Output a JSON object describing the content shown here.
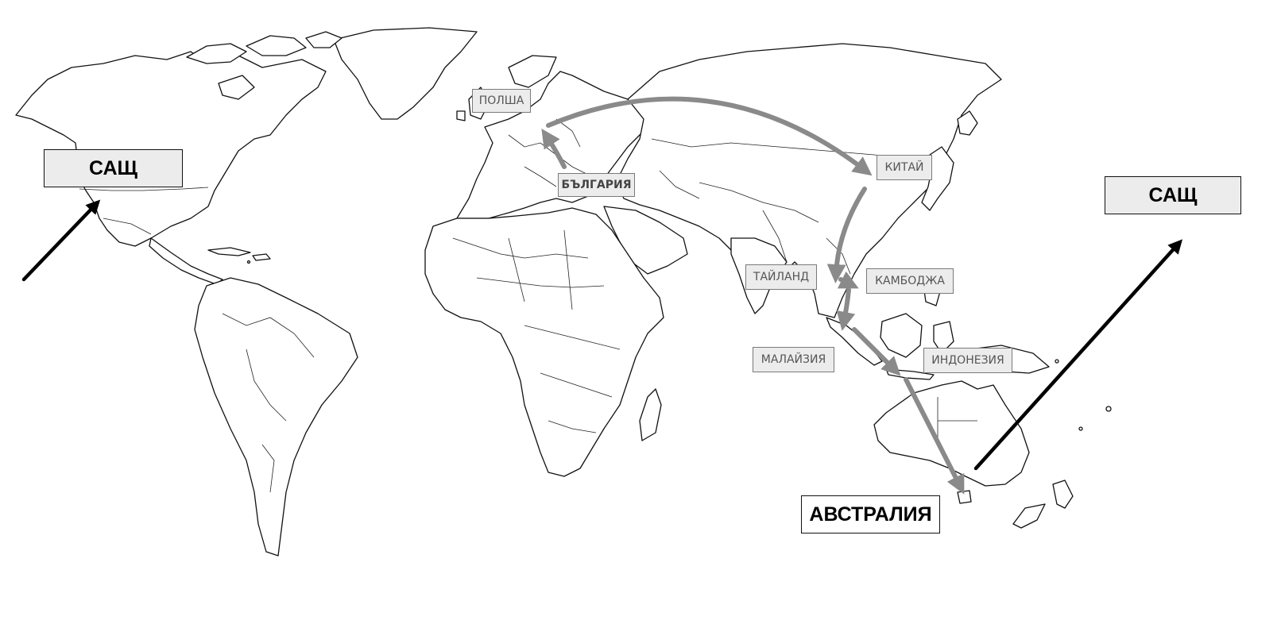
{
  "labels": {
    "usa_left": "САЩ",
    "usa_right": "САЩ",
    "poland": "ПОЛША",
    "bulgaria": "БЪЛГАРИЯ",
    "china": "КИТАЙ",
    "thailand": "ТАЙЛАНД",
    "cambodia": "КАМБОДЖА",
    "malaysia": "МАЛАЙЗИЯ",
    "indonesia": "ИНДОНЕЗИЯ",
    "australia": "АВСТРАЛИЯ"
  },
  "route": [
    "САЩ",
    "БЪЛГАРИЯ",
    "ПОЛША",
    "КИТАЙ",
    "ТАЙЛАНД",
    "КАМБОДЖА",
    "МАЛАЙЗИЯ",
    "ИНДОНЕЗИЯ",
    "АВСТРАЛИЯ",
    "САЩ"
  ],
  "colors": {
    "route_arrow": "#8a8a8a",
    "endpoint_arrow": "#000000",
    "label_fill": "#ececec"
  }
}
